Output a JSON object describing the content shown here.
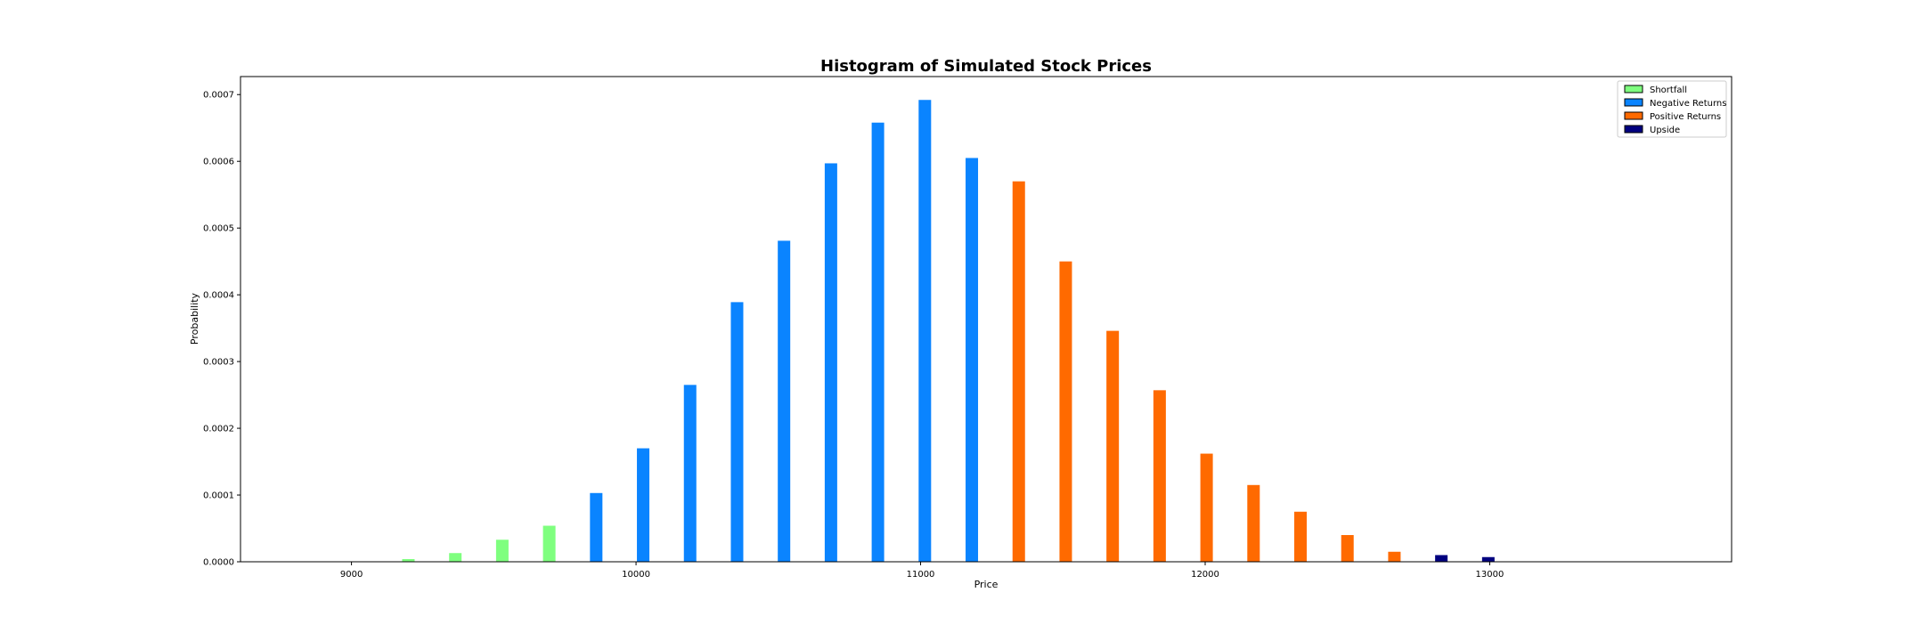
{
  "chart_data": {
    "type": "bar",
    "title": "Histogram of Simulated Stock Prices",
    "xlabel": "Price",
    "ylabel": "Probability",
    "xlim": [
      8610,
      13850
    ],
    "ylim": [
      0,
      0.000727
    ],
    "xticks": [
      9000,
      10000,
      11000,
      12000,
      13000
    ],
    "xtick_labels": [
      "9000",
      "10000",
      "11000",
      "12000",
      "13000"
    ],
    "yticks": [
      0,
      0.0001,
      0.0002,
      0.0003,
      0.0004,
      0.0005,
      0.0006,
      0.0007
    ],
    "ytick_labels": [
      "0.0000",
      "0.0001",
      "0.0002",
      "0.0003",
      "0.0004",
      "0.0005",
      "0.0006",
      "0.0007"
    ],
    "grid": false,
    "legend_position": "top-right",
    "series": [
      {
        "name": "Shortfall",
        "color": "#7fff7f",
        "x": [
          9200,
          9365,
          9530,
          9695
        ],
        "values": [
          4e-06,
          1.3e-05,
          3.3e-05,
          5.4e-05
        ]
      },
      {
        "name": "Negative Returns",
        "color": "#0a84ff",
        "x": [
          9860,
          10025,
          10190,
          10355,
          10520,
          10685,
          10850,
          11015,
          11180
        ],
        "values": [
          0.000103,
          0.00017,
          0.000265,
          0.000389,
          0.000481,
          0.000597,
          0.000658,
          0.000692,
          0.000605
        ]
      },
      {
        "name": "Positive Returns",
        "color": "#ff6a00",
        "x": [
          11345,
          11510,
          11675,
          11840,
          12005,
          12170,
          12335,
          12500,
          12665
        ],
        "values": [
          0.00057,
          0.00045,
          0.000346,
          0.000257,
          0.000162,
          0.000115,
          7.5e-05,
          4e-05,
          1.5e-05
        ]
      },
      {
        "name": "Upside",
        "color": "#00007f",
        "x": [
          12830,
          12995
        ],
        "values": [
          1e-05,
          7e-06
        ]
      }
    ]
  }
}
